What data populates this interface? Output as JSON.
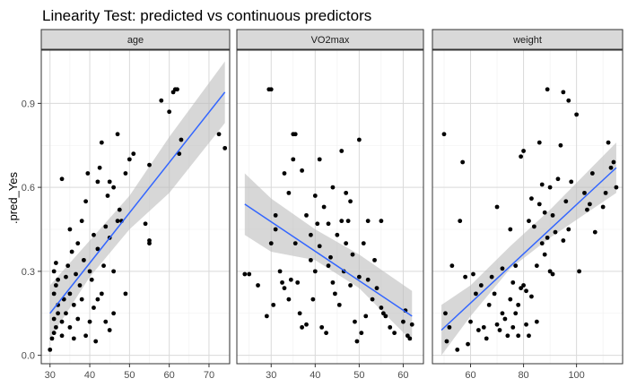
{
  "chart_data": {
    "type": "scatter",
    "title": "Linearity Test: predicted vs continuous predictors",
    "ylabel": ".pred_Yes",
    "ylim": [
      -0.03,
      1.09
    ],
    "y_ticks": [
      0.0,
      0.3,
      0.6,
      0.9
    ],
    "y_tick_labels": [
      "0.0",
      "0.3",
      "0.6",
      "0.9"
    ],
    "grid": true,
    "colors": {
      "panel_bg": "#ffffff",
      "strip_bg": "#d9d9d9",
      "border": "#333333",
      "grid_major": "#d9d9d9",
      "grid_minor": "#efefef",
      "point": "#000000",
      "fit_line": "#3366ff",
      "band": "#bdbdbd"
    },
    "panels": [
      {
        "facet": "age",
        "xlim": [
          27.8,
          75.2
        ],
        "x_ticks": [
          30,
          40,
          50,
          60,
          70
        ],
        "x_tick_labels": [
          "30",
          "40",
          "50",
          "60",
          "70"
        ],
        "fit": {
          "x": [
            30,
            74
          ],
          "y": [
            0.15,
            0.94
          ]
        },
        "band": {
          "x": [
            30,
            40,
            50,
            60,
            74
          ],
          "upper": [
            0.25,
            0.41,
            0.57,
            0.78,
            1.05
          ],
          "lower": [
            0.06,
            0.28,
            0.45,
            0.58,
            0.83
          ]
        },
        "points": [
          [
            30,
            0.02
          ],
          [
            30.5,
            0.06
          ],
          [
            31,
            0.08
          ],
          [
            31.5,
            0.1
          ],
          [
            31,
            0.13
          ],
          [
            32,
            0.15
          ],
          [
            32,
            0.18
          ],
          [
            31,
            0.22
          ],
          [
            31.5,
            0.25
          ],
          [
            31,
            0.3
          ],
          [
            31.5,
            0.33
          ],
          [
            32,
            0.27
          ],
          [
            33,
            0.07
          ],
          [
            33,
            0.12
          ],
          [
            33.5,
            0.2
          ],
          [
            34,
            0.28
          ],
          [
            34.5,
            0.32
          ],
          [
            33,
            0.63
          ],
          [
            34,
            0.15
          ],
          [
            35,
            0.1
          ],
          [
            35,
            0.22
          ],
          [
            35.5,
            0.37
          ],
          [
            35,
            0.45
          ],
          [
            36,
            0.06
          ],
          [
            36,
            0.18
          ],
          [
            36.5,
            0.29
          ],
          [
            37,
            0.13
          ],
          [
            37,
            0.4
          ],
          [
            37.5,
            0.25
          ],
          [
            38,
            0.2
          ],
          [
            38,
            0.48
          ],
          [
            38.5,
            0.34
          ],
          [
            39,
            0.07
          ],
          [
            39,
            0.55
          ],
          [
            39.5,
            0.65
          ],
          [
            40,
            0.12
          ],
          [
            40,
            0.3
          ],
          [
            40.5,
            0.27
          ],
          [
            41,
            0.17
          ],
          [
            41,
            0.43
          ],
          [
            41.5,
            0.05
          ],
          [
            42,
            0.2
          ],
          [
            42,
            0.38
          ],
          [
            42,
            0.62
          ],
          [
            42.5,
            0.67
          ],
          [
            43,
            0.76
          ],
          [
            43,
            0.22
          ],
          [
            43.5,
            0.32
          ],
          [
            44,
            0.12
          ],
          [
            44,
            0.46
          ],
          [
            44.5,
            0.57
          ],
          [
            45,
            0.09
          ],
          [
            45,
            0.42
          ],
          [
            45,
            0.62
          ],
          [
            46,
            0.3
          ],
          [
            46,
            0.15
          ],
          [
            46,
            0.6
          ],
          [
            47,
            0.48
          ],
          [
            47,
            0.79
          ],
          [
            47.5,
            0.52
          ],
          [
            48,
            0.48
          ],
          [
            49,
            0.22
          ],
          [
            49,
            0.65
          ],
          [
            50,
            0.7
          ],
          [
            51,
            0.72
          ],
          [
            54,
            0.47
          ],
          [
            55,
            0.4
          ],
          [
            55,
            0.41
          ],
          [
            55,
            0.68
          ],
          [
            58,
            0.91
          ],
          [
            60,
            0.87
          ],
          [
            61,
            0.94
          ],
          [
            61.5,
            0.95
          ],
          [
            62,
            0.95
          ],
          [
            62.5,
            0.72
          ],
          [
            63,
            0.77
          ],
          [
            72.5,
            0.79
          ],
          [
            74,
            0.74
          ]
        ]
      },
      {
        "facet": "VO2max",
        "xlim": [
          22.2,
          64.6
        ],
        "x_ticks": [
          30,
          40,
          50,
          60
        ],
        "x_tick_labels": [
          "30",
          "40",
          "50",
          "60"
        ],
        "fit": {
          "x": [
            24,
            62
          ],
          "y": [
            0.54,
            0.14
          ]
        },
        "band": {
          "x": [
            24,
            30,
            40,
            50,
            62
          ],
          "upper": [
            0.65,
            0.56,
            0.45,
            0.36,
            0.23
          ],
          "lower": [
            0.43,
            0.37,
            0.34,
            0.24,
            0.05
          ]
        },
        "points": [
          [
            24,
            0.29
          ],
          [
            25,
            0.29
          ],
          [
            27,
            0.25
          ],
          [
            29,
            0.14
          ],
          [
            29.5,
            0.95
          ],
          [
            30,
            0.95
          ],
          [
            30,
            0.4
          ],
          [
            30.5,
            0.18
          ],
          [
            31,
            0.45
          ],
          [
            31,
            0.5
          ],
          [
            32,
            0.3
          ],
          [
            32.5,
            0.26
          ],
          [
            33,
            0.24
          ],
          [
            33,
            0.65
          ],
          [
            34,
            0.58
          ],
          [
            34.5,
            0.27
          ],
          [
            34,
            0.2
          ],
          [
            35,
            0.79
          ],
          [
            35,
            0.7
          ],
          [
            35.5,
            0.79
          ],
          [
            35.5,
            0.4
          ],
          [
            36,
            0.26
          ],
          [
            36.5,
            0.15
          ],
          [
            37,
            0.66
          ],
          [
            37,
            0.1
          ],
          [
            38,
            0.5
          ],
          [
            38,
            0.11
          ],
          [
            39,
            0.43
          ],
          [
            39,
            0.34
          ],
          [
            39.5,
            0.2
          ],
          [
            40,
            0.57
          ],
          [
            40,
            0.3
          ],
          [
            40.5,
            0.47
          ],
          [
            41,
            0.39
          ],
          [
            41,
            0.7
          ],
          [
            41.5,
            0.1
          ],
          [
            42,
            0.53
          ],
          [
            42.5,
            0.08
          ],
          [
            43,
            0.47
          ],
          [
            43,
            0.32
          ],
          [
            43.5,
            0.35
          ],
          [
            44,
            0.6
          ],
          [
            44,
            0.26
          ],
          [
            44.5,
            0.22
          ],
          [
            45,
            0.43
          ],
          [
            45.5,
            0.18
          ],
          [
            46,
            0.73
          ],
          [
            46,
            0.48
          ],
          [
            46.5,
            0.3
          ],
          [
            47,
            0.4
          ],
          [
            47,
            0.58
          ],
          [
            47.5,
            0.48
          ],
          [
            48,
            0.55
          ],
          [
            48,
            0.25
          ],
          [
            48.5,
            0.36
          ],
          [
            49,
            0.12
          ],
          [
            49.5,
            0.05
          ],
          [
            50,
            0.77
          ],
          [
            50,
            0.28
          ],
          [
            50.5,
            0.08
          ],
          [
            51,
            0.4
          ],
          [
            51.5,
            0.14
          ],
          [
            52,
            0.48
          ],
          [
            52,
            0.27
          ],
          [
            53,
            0.2
          ],
          [
            53.5,
            0.34
          ],
          [
            54,
            0.24
          ],
          [
            55,
            0.17
          ],
          [
            55,
            0.48
          ],
          [
            55.5,
            0.15
          ],
          [
            56,
            0.14
          ],
          [
            57,
            0.1
          ],
          [
            58,
            0.08
          ],
          [
            60,
            0.12
          ],
          [
            60.5,
            0.16
          ],
          [
            61,
            0.07
          ],
          [
            61.5,
            0.06
          ],
          [
            62,
            0.11
          ]
        ]
      },
      {
        "facet": "weight",
        "xlim": [
          45.6,
          117.4
        ],
        "x_ticks": [
          60,
          80,
          100
        ],
        "x_tick_labels": [
          "60",
          "80",
          "100"
        ],
        "fit": {
          "x": [
            49,
            115
          ],
          "y": [
            0.09,
            0.67
          ]
        },
        "band": {
          "x": [
            49,
            60,
            75,
            90,
            115
          ],
          "upper": [
            0.18,
            0.25,
            0.39,
            0.52,
            0.76
          ],
          "lower": [
            0.0,
            0.14,
            0.31,
            0.42,
            0.58
          ]
        },
        "points": [
          [
            50,
            0.79
          ],
          [
            50.5,
            0.15
          ],
          [
            51,
            0.05
          ],
          [
            52,
            0.1
          ],
          [
            53,
            0.32
          ],
          [
            55,
            0.02
          ],
          [
            56,
            0.48
          ],
          [
            57,
            0.69
          ],
          [
            58,
            0.28
          ],
          [
            59,
            0.04
          ],
          [
            60,
            0.12
          ],
          [
            61,
            0.29
          ],
          [
            62,
            0.22
          ],
          [
            63,
            0.09
          ],
          [
            64,
            0.25
          ],
          [
            65,
            0.1
          ],
          [
            66,
            0.06
          ],
          [
            67,
            0.18
          ],
          [
            68,
            0.28
          ],
          [
            69,
            0.22
          ],
          [
            70,
            0.11
          ],
          [
            70,
            0.53
          ],
          [
            71,
            0.09
          ],
          [
            72,
            0.15
          ],
          [
            72,
            0.31
          ],
          [
            73,
            0.13
          ],
          [
            74,
            0.07
          ],
          [
            75,
            0.45
          ],
          [
            75,
            0.2
          ],
          [
            76,
            0.26
          ],
          [
            76,
            0.1
          ],
          [
            77,
            0.32
          ],
          [
            77,
            0.15
          ],
          [
            78,
            0.18
          ],
          [
            78,
            0.07
          ],
          [
            79,
            0.24
          ],
          [
            79,
            0.71
          ],
          [
            80,
            0.25
          ],
          [
            80,
            0.73
          ],
          [
            81,
            0.11
          ],
          [
            81,
            0.23
          ],
          [
            82,
            0.48
          ],
          [
            82,
            0.07
          ],
          [
            83,
            0.56
          ],
          [
            83,
            0.21
          ],
          [
            84,
            0.46
          ],
          [
            85,
            0.32
          ],
          [
            85,
            0.12
          ],
          [
            86,
            0.54
          ],
          [
            86,
            0.76
          ],
          [
            87,
            0.4
          ],
          [
            87,
            0.61
          ],
          [
            88,
            0.36
          ],
          [
            88,
            0.51
          ],
          [
            89,
            0.95
          ],
          [
            89,
            0.42
          ],
          [
            90,
            0.6
          ],
          [
            90,
            0.3
          ],
          [
            91,
            0.29
          ],
          [
            91,
            0.5
          ],
          [
            92,
            0.44
          ],
          [
            93,
            0.63
          ],
          [
            94,
            0.75
          ],
          [
            95,
            0.94
          ],
          [
            95,
            0.41
          ],
          [
            96,
            0.55
          ],
          [
            97,
            0.45
          ],
          [
            97,
            0.91
          ],
          [
            98,
            0.62
          ],
          [
            100,
            0.86
          ],
          [
            101,
            0.3
          ],
          [
            103,
            0.58
          ],
          [
            104,
            0.52
          ],
          [
            105,
            0.54
          ],
          [
            106,
            0.65
          ],
          [
            107,
            0.44
          ],
          [
            110,
            0.53
          ],
          [
            111,
            0.58
          ],
          [
            112,
            0.76
          ],
          [
            113,
            0.67
          ],
          [
            114,
            0.69
          ],
          [
            115,
            0.6
          ]
        ]
      }
    ]
  }
}
